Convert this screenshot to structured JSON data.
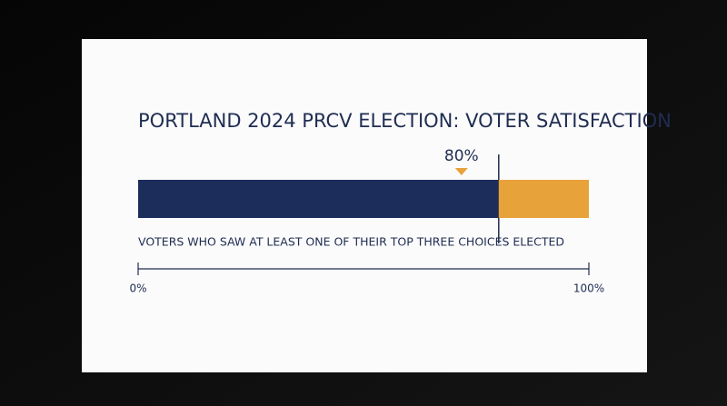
{
  "chart_data": {
    "type": "bar",
    "orientation": "horizontal",
    "stacked": true,
    "title": "PORTLAND 2024 PRCV ELECTION: VOTER SATISFACTION",
    "series": [
      {
        "name": "VOTERS WHO SAW AT LEAST ONE OF THEIR TOP THREE CHOICES ELECTED",
        "color": "#1c2d5c",
        "values": [
          80
        ],
        "value_labels": [
          "80%"
        ]
      },
      {
        "color": "#e8a23a",
        "values": [
          20
        ]
      }
    ],
    "xlim": [
      0,
      100
    ],
    "xticks": [
      {
        "value": 0,
        "label": "0%"
      },
      {
        "value": 100,
        "label": "100%"
      }
    ]
  }
}
